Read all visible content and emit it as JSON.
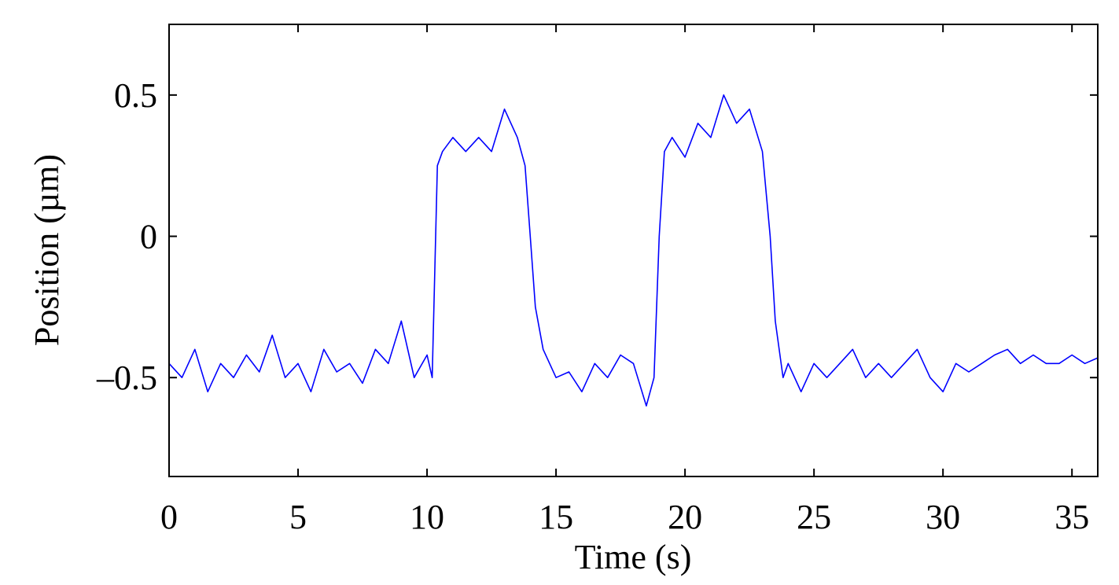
{
  "chart_data": {
    "type": "line",
    "title": "",
    "xlabel": "Time (s)",
    "ylabel": "Position (µm)",
    "xlim": [
      0,
      36
    ],
    "ylim": [
      -0.85,
      0.75
    ],
    "xticks": [
      {
        "value": 0,
        "label": "0"
      },
      {
        "value": 5,
        "label": "5"
      },
      {
        "value": 10,
        "label": "10"
      },
      {
        "value": 15,
        "label": "15"
      },
      {
        "value": 20,
        "label": "20"
      },
      {
        "value": 25,
        "label": "25"
      },
      {
        "value": 30,
        "label": "30"
      },
      {
        "value": 35,
        "label": "35"
      }
    ],
    "yticks": [
      {
        "value": 0.5,
        "label": "0.5"
      },
      {
        "value": 0,
        "label": "0"
      },
      {
        "value": -0.5,
        "label": "–0.5"
      }
    ],
    "grid": false,
    "legend": "none",
    "line_color": "#0000ff",
    "series": [
      {
        "x": [
          0,
          0.5,
          1,
          1.5,
          2,
          2.5,
          3,
          3.5,
          4,
          4.5,
          5,
          5.5,
          6,
          6.5,
          7,
          7.5,
          8,
          8.5,
          9,
          9.5,
          10,
          10.2,
          10.4,
          10.6,
          11,
          11.5,
          12,
          12.5,
          13,
          13.5,
          13.8,
          14,
          14.2,
          14.5,
          15,
          15.5,
          16,
          16.5,
          17,
          17.5,
          18,
          18.5,
          18.8,
          19,
          19.2,
          19.5,
          20,
          20.5,
          21,
          21.5,
          22,
          22.5,
          23,
          23.3,
          23.5,
          23.8,
          24,
          24.5,
          25,
          25.5,
          26,
          26.5,
          27,
          27.5,
          28,
          28.5,
          29,
          29.5,
          30,
          30.5,
          31,
          31.5,
          32,
          32.5,
          33,
          33.5,
          34,
          34.5,
          35,
          35.5,
          36
        ],
        "y": [
          -0.45,
          -0.5,
          -0.4,
          -0.55,
          -0.45,
          -0.5,
          -0.42,
          -0.48,
          -0.35,
          -0.5,
          -0.45,
          -0.55,
          -0.4,
          -0.48,
          -0.45,
          -0.52,
          -0.4,
          -0.45,
          -0.3,
          -0.5,
          -0.42,
          -0.5,
          0.25,
          0.3,
          0.35,
          0.3,
          0.35,
          0.3,
          0.45,
          0.35,
          0.25,
          0,
          -0.25,
          -0.4,
          -0.5,
          -0.48,
          -0.55,
          -0.45,
          -0.5,
          -0.42,
          -0.45,
          -0.6,
          -0.5,
          0,
          0.3,
          0.35,
          0.28,
          0.4,
          0.35,
          0.5,
          0.4,
          0.45,
          0.3,
          0,
          -0.3,
          -0.5,
          -0.45,
          -0.55,
          -0.45,
          -0.5,
          -0.45,
          -0.4,
          -0.5,
          -0.45,
          -0.5,
          -0.45,
          -0.4,
          -0.5,
          -0.55,
          -0.45,
          -0.48,
          -0.45,
          -0.42,
          -0.4,
          -0.45,
          -0.42,
          -0.45,
          -0.45,
          -0.42,
          -0.45,
          -0.43
        ]
      }
    ]
  }
}
